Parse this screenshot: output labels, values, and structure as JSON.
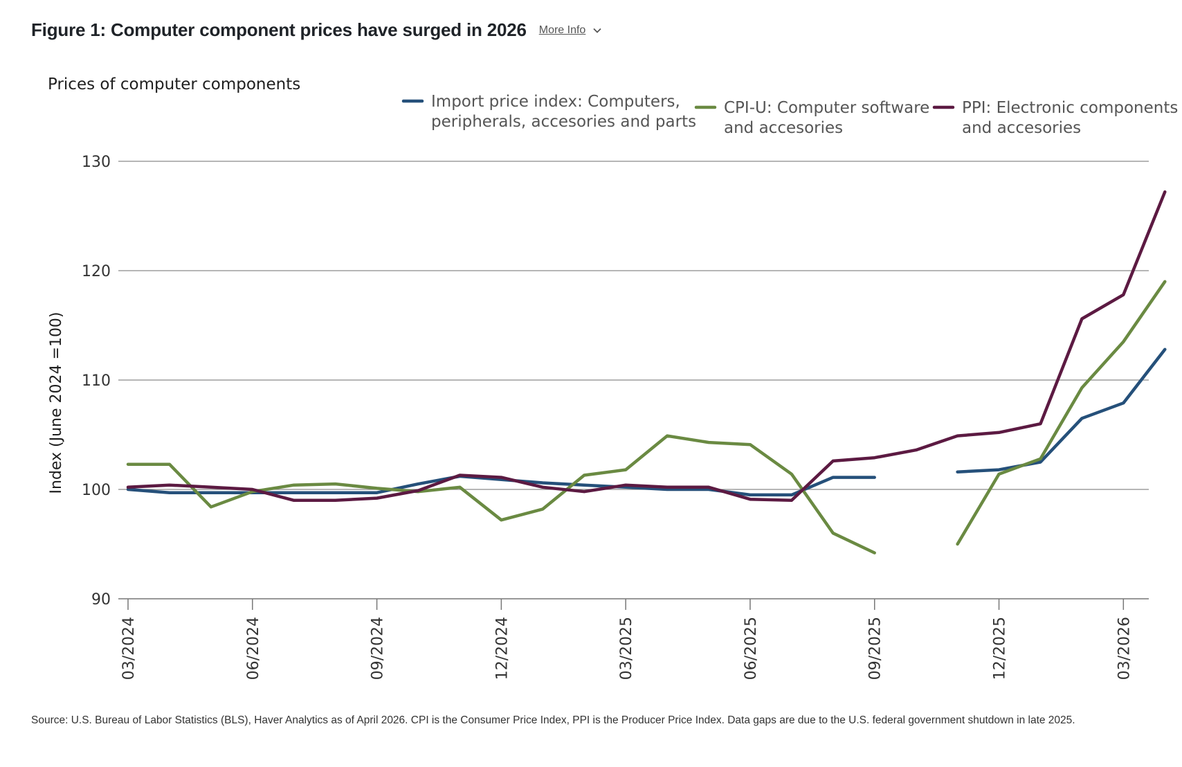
{
  "header": {
    "figure_title": "Figure 1: Computer component prices have surged in 2026",
    "more_info_label": "More Info"
  },
  "source_note": "Source: U.S. Bureau of Labor Statistics (BLS), Haver Analytics as of April 2026. CPI is the Consumer Price Index, PPI is the Producer Price Index. Data gaps are due to the U.S. federal government shutdown in late 2025.",
  "chart_data": {
    "type": "line",
    "title": "Prices of computer components",
    "xlabel": "",
    "ylabel": "Index (June 2024 =100)",
    "ylim": [
      90,
      130
    ],
    "yticks": [
      90,
      100,
      110,
      120,
      130
    ],
    "grid": true,
    "legend_position": "top",
    "x": [
      "03/2024",
      "04/2024",
      "05/2024",
      "06/2024",
      "07/2024",
      "08/2024",
      "09/2024",
      "10/2024",
      "11/2024",
      "12/2024",
      "01/2025",
      "02/2025",
      "03/2025",
      "04/2025",
      "05/2025",
      "06/2025",
      "07/2025",
      "08/2025",
      "09/2025",
      "10/2025",
      "11/2025",
      "12/2025",
      "01/2026",
      "02/2026",
      "03/2026",
      "04/2026"
    ],
    "xticks": [
      "03/2024",
      "06/2024",
      "09/2024",
      "12/2024",
      "03/2025",
      "06/2025",
      "09/2025",
      "12/2025",
      "03/2026"
    ],
    "series": [
      {
        "name": "Import price index: Computers, peripherals, accesories and parts",
        "legend_lines": [
          "Import price index: Computers,",
          "peripherals, accesories and parts"
        ],
        "color": "#25507a",
        "values": [
          100.0,
          99.7,
          99.7,
          99.7,
          99.7,
          99.7,
          99.7,
          100.5,
          101.2,
          100.9,
          100.6,
          100.4,
          100.2,
          100.0,
          100.0,
          99.5,
          99.5,
          101.1,
          101.1,
          null,
          101.6,
          101.8,
          102.5,
          106.5,
          107.9,
          112.8
        ]
      },
      {
        "name": "CPI-U: Computer software and accesories",
        "legend_lines": [
          "CPI-U: Computer software",
          "and accesories"
        ],
        "color": "#6a8a42",
        "values": [
          102.3,
          102.3,
          98.4,
          99.8,
          100.4,
          100.5,
          100.1,
          99.8,
          100.2,
          97.2,
          98.2,
          101.3,
          101.8,
          104.9,
          104.3,
          104.1,
          101.4,
          96.0,
          94.2,
          null,
          95.0,
          101.4,
          102.8,
          109.3,
          113.5,
          119.0
        ]
      },
      {
        "name": "PPI: Electronic components and accesories",
        "legend_lines": [
          "PPI: Electronic components",
          "and accesories"
        ],
        "color": "#5c1a42",
        "values": [
          100.2,
          100.4,
          100.2,
          100.0,
          99.0,
          99.0,
          99.2,
          99.9,
          101.3,
          101.1,
          100.2,
          99.8,
          100.4,
          100.2,
          100.2,
          99.1,
          99.0,
          102.6,
          102.9,
          103.6,
          104.9,
          105.2,
          106.0,
          115.6,
          117.8,
          127.2
        ]
      }
    ]
  }
}
